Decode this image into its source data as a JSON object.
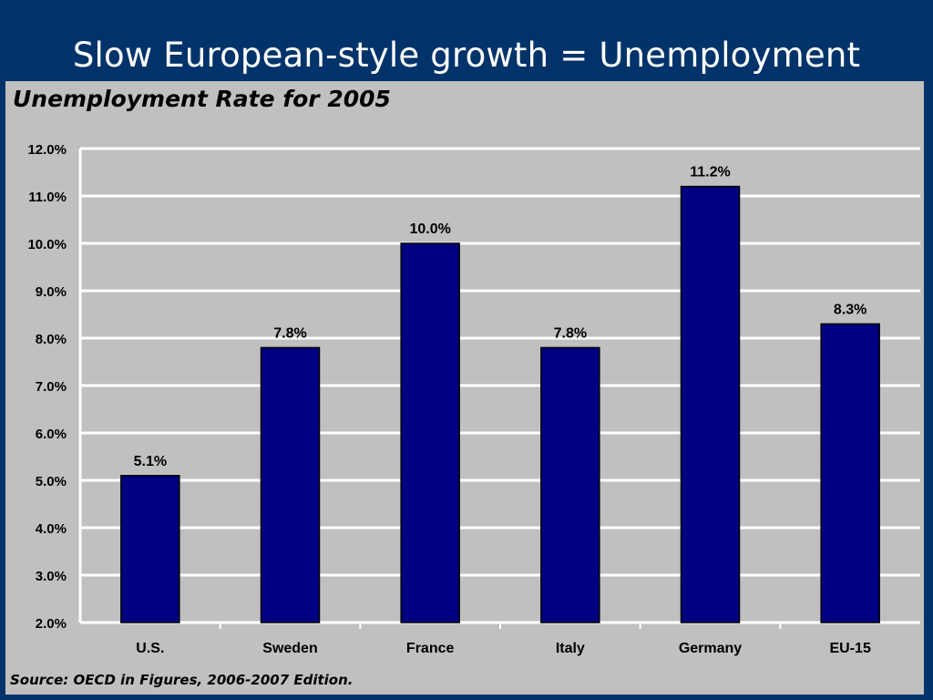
{
  "slide": {
    "title": "Slow European-style growth = Unemployment",
    "source": "Source:  OECD in Figures, 2006-2007 Edition."
  },
  "colors": {
    "slide_background": "#00336a",
    "panel_background": "#c0c0c0",
    "bar_fill": "#000080"
  },
  "chart_data": {
    "type": "bar",
    "title": "Unemployment Rate for 2005",
    "xlabel": "",
    "ylabel": "",
    "categories": [
      "U.S.",
      "Sweden",
      "France",
      "Italy",
      "Germany",
      "EU-15"
    ],
    "values": [
      5.1,
      7.8,
      10.0,
      7.8,
      11.2,
      8.3
    ],
    "value_labels": [
      "5.1%",
      "7.8%",
      "10.0%",
      "7.8%",
      "11.2%",
      "8.3%"
    ],
    "ylim": [
      2.0,
      12.0
    ],
    "yticks": [
      2.0,
      3.0,
      4.0,
      5.0,
      6.0,
      7.0,
      8.0,
      9.0,
      10.0,
      11.0,
      12.0
    ],
    "ytick_labels": [
      "2.0%",
      "3.0%",
      "4.0%",
      "5.0%",
      "6.0%",
      "7.0%",
      "8.0%",
      "9.0%",
      "10.0%",
      "11.0%",
      "12.0%"
    ],
    "grid": true,
    "legend": "none"
  }
}
